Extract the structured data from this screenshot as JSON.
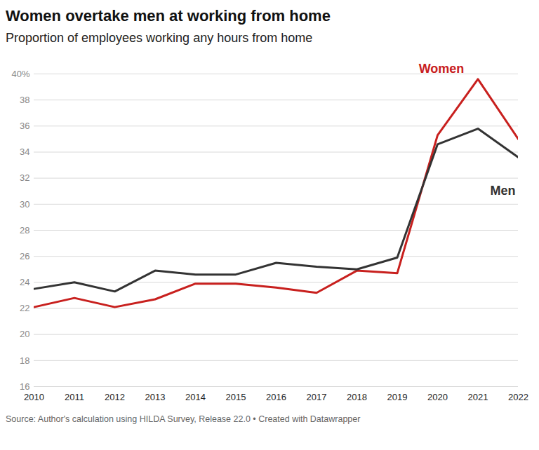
{
  "chart_data": {
    "type": "line",
    "title": "Women overtake men at working from home",
    "subtitle": "Proportion of employees working any hours from home",
    "caption": "Source: Author's calculation using HILDA Survey, Release 22.0 • Created with Datawrapper",
    "x": [
      2010,
      2011,
      2012,
      2013,
      2014,
      2015,
      2016,
      2017,
      2018,
      2019,
      2020,
      2021,
      2022
    ],
    "series": [
      {
        "name": "Women",
        "color": "#c8201e",
        "values": [
          22.1,
          22.8,
          22.1,
          22.7,
          23.9,
          23.9,
          23.6,
          23.2,
          24.9,
          24.7,
          35.3,
          39.6,
          35.0
        ]
      },
      {
        "name": "Men",
        "color": "#333333",
        "values": [
          23.5,
          24.0,
          23.3,
          24.9,
          24.6,
          24.6,
          25.5,
          25.2,
          25.0,
          25.9,
          34.6,
          35.8,
          33.6
        ]
      }
    ],
    "xlim": [
      2010,
      2022
    ],
    "xticks": [
      2010,
      2011,
      2012,
      2013,
      2014,
      2015,
      2016,
      2017,
      2018,
      2019,
      2020,
      2021,
      2022
    ],
    "ylim": [
      16,
      40
    ],
    "yticks": [
      16,
      18,
      20,
      22,
      24,
      26,
      28,
      30,
      32,
      34,
      36,
      38,
      {
        "value": 40,
        "label": "40%"
      }
    ],
    "grid": true
  }
}
